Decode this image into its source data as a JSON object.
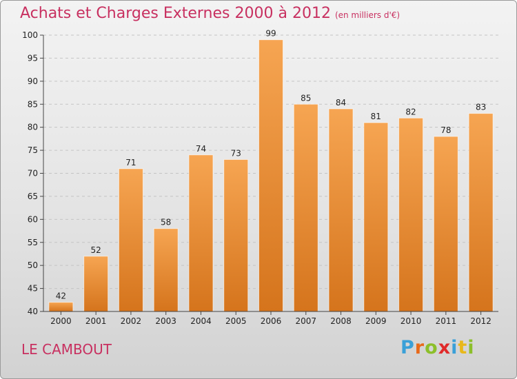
{
  "header": {
    "title": "Achats et Charges Externes 2000 à 2012",
    "subtitle": "(en milliers d'€)"
  },
  "footer": {
    "place": "LE CAMBOUT",
    "logo": "Proxiti"
  },
  "colors": {
    "bar_top": "#f6a552",
    "bar_bottom": "#d5741c",
    "title": "#c83060"
  },
  "chart_data": {
    "type": "bar",
    "title": "Achats et Charges Externes 2000 à 2012",
    "subtitle": "(en milliers d'€)",
    "categories": [
      "2000",
      "2001",
      "2002",
      "2003",
      "2004",
      "2005",
      "2006",
      "2007",
      "2008",
      "2009",
      "2010",
      "2011",
      "2012"
    ],
    "values": [
      42,
      52,
      71,
      58,
      74,
      73,
      99,
      85,
      84,
      81,
      82,
      78,
      83
    ],
    "ylim": [
      40,
      100
    ],
    "yticks": [
      40,
      45,
      50,
      55,
      60,
      65,
      70,
      75,
      80,
      85,
      90,
      95,
      100
    ],
    "grid": true,
    "data_labels": true
  }
}
